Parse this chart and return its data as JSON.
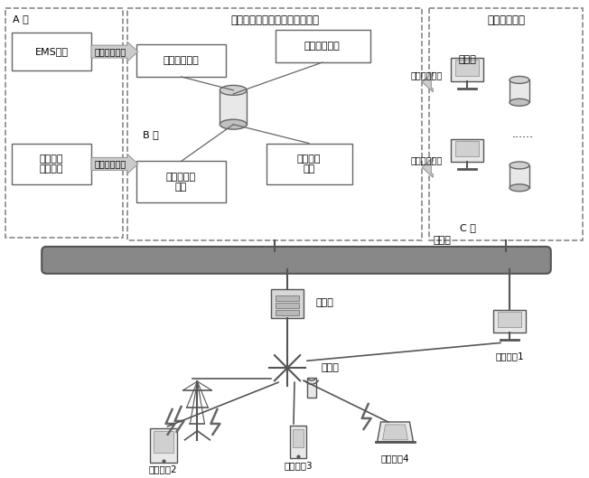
{
  "title_main": "输电线路雷击故障智能分析系统",
  "title_right": "雷电定位中心",
  "label_A": "A 区",
  "label_B": "B 区",
  "label_C": "C 区",
  "box_EMS": "EMS系统",
  "box_relay": "继电保护\n信息系统",
  "box_preacq": "前置采集单元",
  "box_smart": "智能分析单元",
  "box_db_service": "数据库服务\n单元",
  "box_app": "应用展示\n单元",
  "arrow_line1": "贯闭线路信息",
  "arrow_line2": "故障测距信息",
  "arrow_lightning": "雷电定位数据",
  "arrow_tower": "线路杆塔数据",
  "label_lan": "局域网",
  "label_firewall": "防火墙",
  "label_internet": "互联网",
  "label_user1": "终端用户1",
  "label_user2": "终端用户2",
  "label_user3": "终端用户3",
  "label_user4": "终端用户4",
  "label_db": "数据库",
  "label_dots": "......",
  "bg_color": "#ffffff",
  "box_color": "#ffffff",
  "dash_color": "#888888",
  "arrow_color": "#aaaaaa",
  "text_color": "#000000",
  "line_color": "#666666"
}
